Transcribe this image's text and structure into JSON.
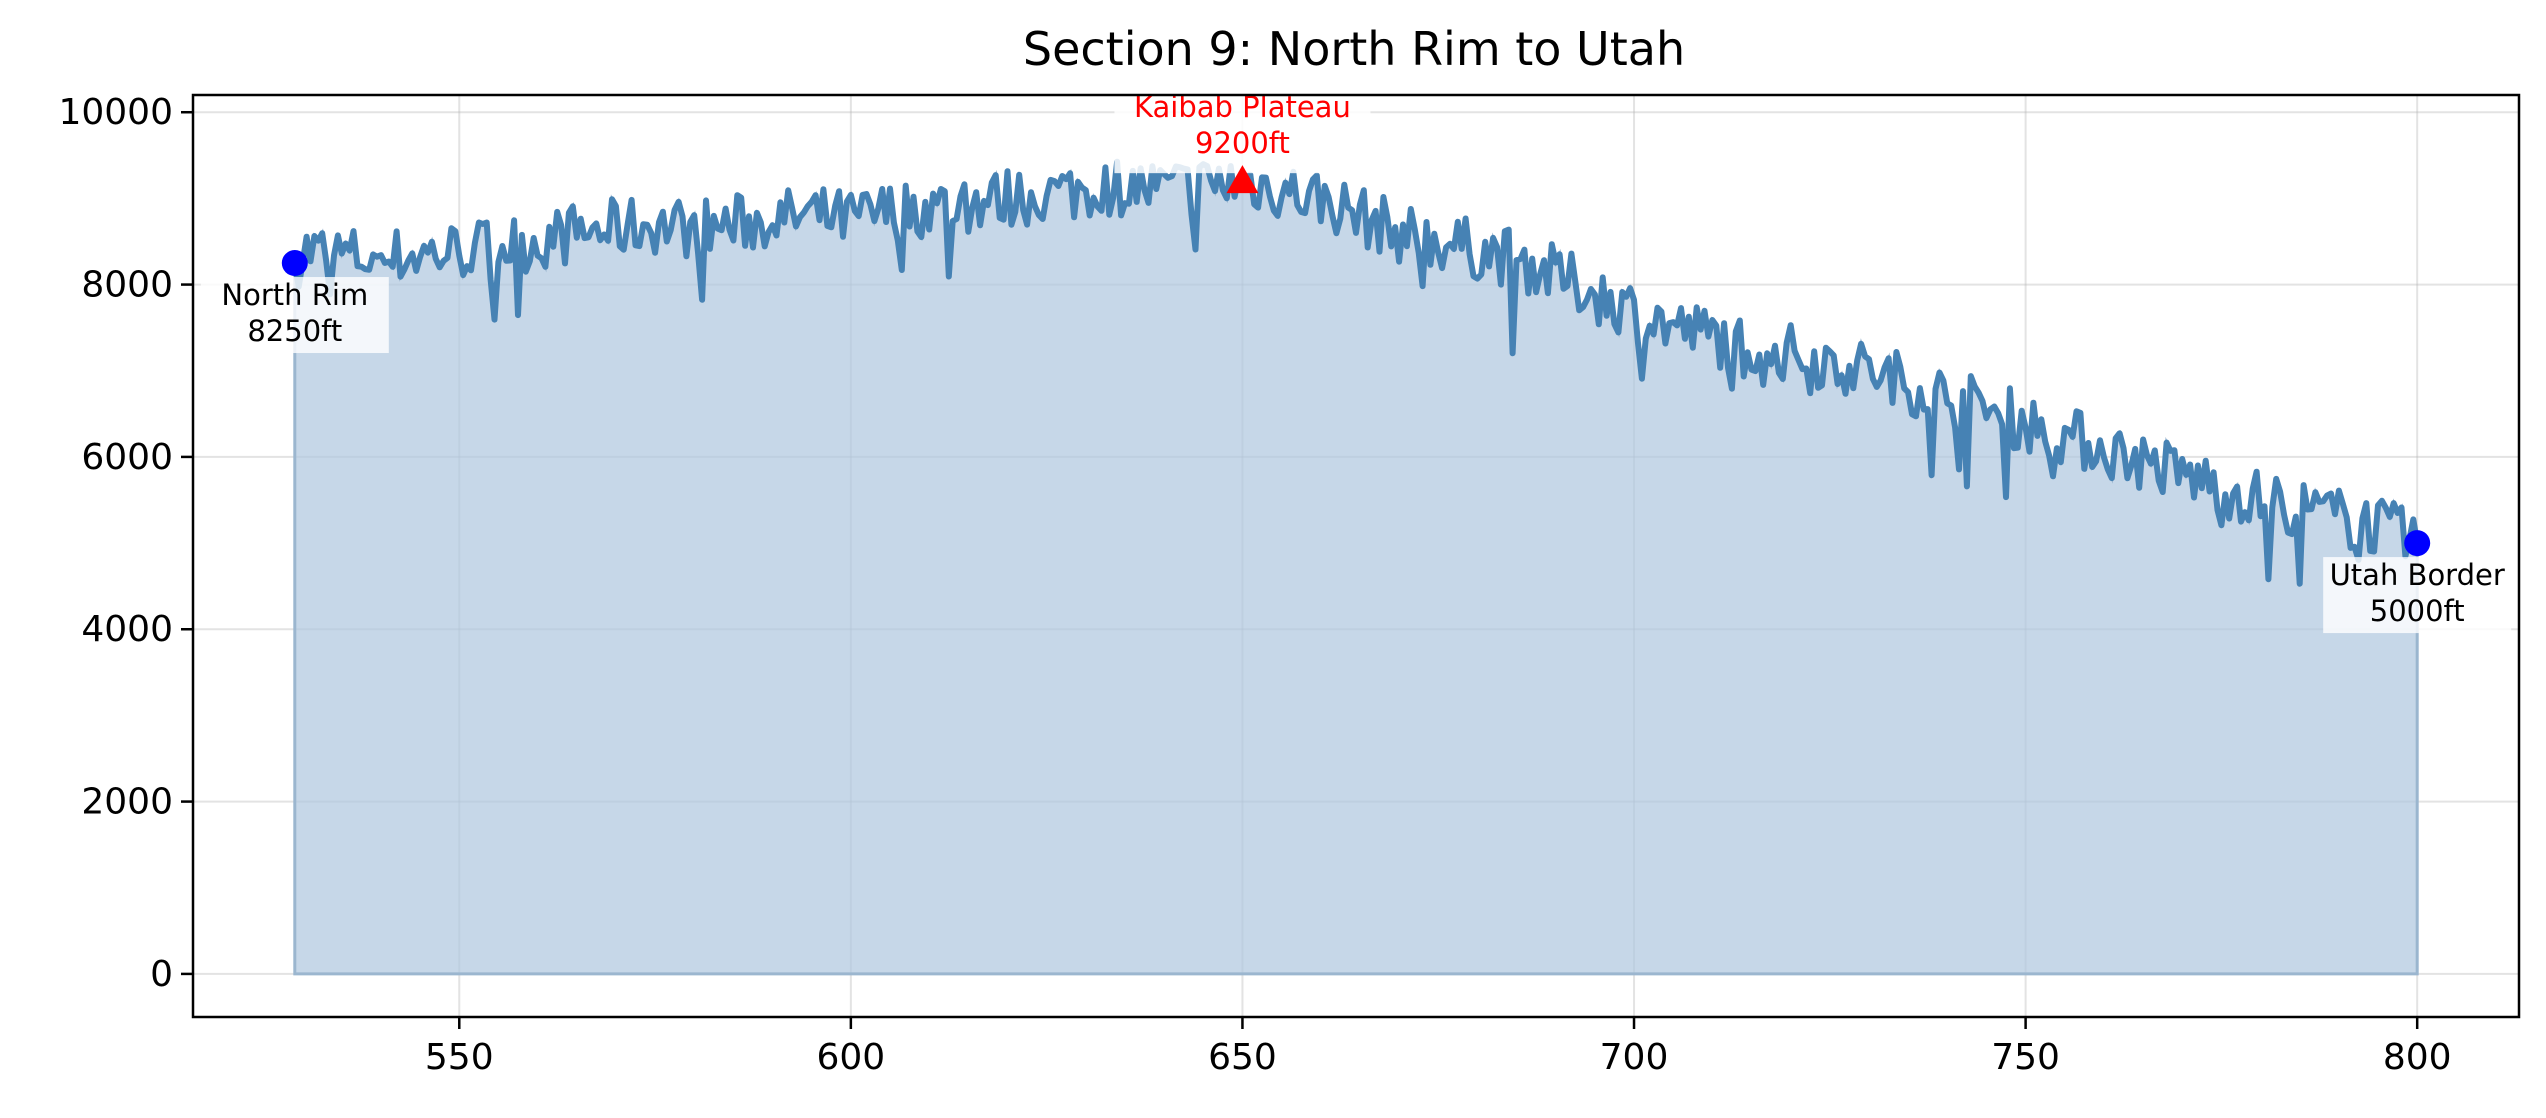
{
  "chart_data": {
    "type": "area",
    "title": "Section 9: North Rim to Utah",
    "xlabel": "",
    "ylabel": "",
    "xlim": [
      516,
      813
    ],
    "ylim": [
      -500,
      10200
    ],
    "xticks": [
      550,
      600,
      650,
      700,
      750,
      800
    ],
    "yticks": [
      0,
      2000,
      4000,
      6000,
      8000,
      10000
    ],
    "grid": true,
    "colors": {
      "line": "#4682b4",
      "fill": "#b0c8df",
      "start_end_marker": "#0000ff",
      "peak_marker": "#ff0000",
      "peak_text": "#ff0000"
    },
    "series": [
      {
        "x": [
          529,
          530,
          535,
          540,
          545,
          550,
          555,
          560,
          565,
          570,
          575,
          580,
          585,
          590,
          595,
          600,
          605,
          610,
          615,
          620,
          625,
          630,
          635,
          640,
          645,
          650,
          655,
          660,
          665,
          670,
          675,
          680,
          685,
          690,
          695,
          700,
          705,
          710,
          715,
          720,
          725,
          730,
          735,
          740,
          745,
          750,
          755,
          760,
          765,
          770,
          775,
          780,
          785,
          790,
          795,
          800
        ],
        "y": [
          8250,
          8400,
          8350,
          8300,
          8350,
          8400,
          8450,
          8500,
          8600,
          8650,
          8700,
          8650,
          8700,
          8750,
          8800,
          8750,
          8850,
          8900,
          8950,
          9000,
          9050,
          9100,
          9150,
          9100,
          9150,
          9200,
          9100,
          9000,
          8800,
          8600,
          8500,
          8400,
          8300,
          8100,
          7900,
          7700,
          7500,
          7400,
          7300,
          7200,
          7100,
          7000,
          6850,
          6700,
          6550,
          6400,
          6250,
          6100,
          5950,
          5800,
          5650,
          5500,
          5400,
          5300,
          5200,
          5000
        ]
      }
    ],
    "annotations": [
      {
        "label": "North Rim",
        "value": "8250ft",
        "x": 529,
        "y": 8250,
        "marker": "circle"
      },
      {
        "label": "Kaibab Plateau",
        "value": "9200ft",
        "x": 650,
        "y": 9200,
        "marker": "triangle"
      },
      {
        "label": "Utah Border",
        "value": "5000ft",
        "x": 800,
        "y": 5000,
        "marker": "circle"
      }
    ]
  }
}
